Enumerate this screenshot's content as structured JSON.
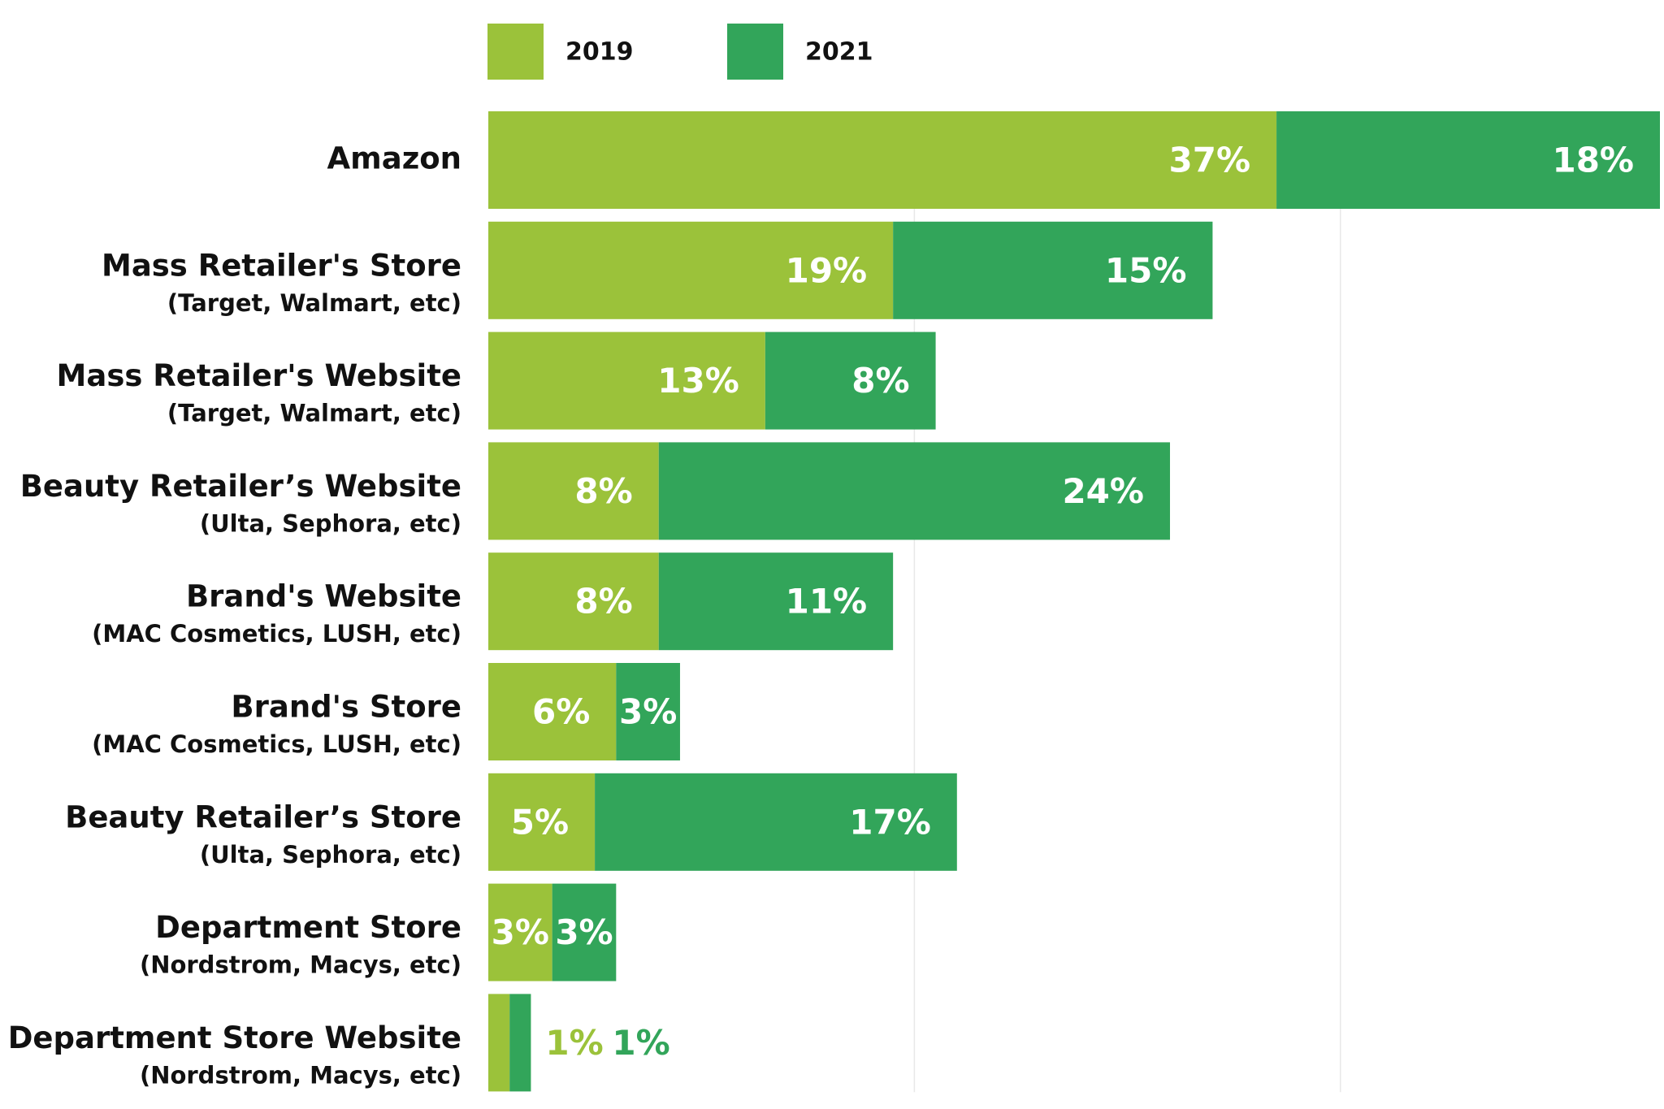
{
  "chart_data": {
    "type": "stacked-horizontal-bar",
    "categories": [
      "Amazon",
      "Mass Retailer's Store",
      "Mass Retailer's Website",
      "Beauty Retailer’s Website",
      "Brand's Website",
      "Brand's Store",
      "Beauty Retailer’s Store",
      "Department Store",
      "Department Store Website"
    ],
    "category_subtitles": [
      null,
      "(Target, Walmart, etc)",
      "(Target, Walmart, etc)",
      "(Ulta, Sephora, etc)",
      "(MAC Cosmetics, LUSH, etc)",
      "(MAC Cosmetics, LUSH, etc)",
      "(Ulta, Sephora, etc)",
      "(Nordstrom, Macys, etc)",
      "(Nordstrom, Macys, etc)"
    ],
    "series": [
      {
        "name": "2019",
        "color": "#9bc23a",
        "values": [
          37,
          19,
          13,
          8,
          8,
          6,
          5,
          3,
          1
        ],
        "value_labels": [
          "37%",
          "19%",
          "13%",
          "8%",
          "8%",
          "6%",
          "5%",
          "3%",
          "1%"
        ]
      },
      {
        "name": "2021",
        "color": "#32a55a",
        "values": [
          18,
          15,
          8,
          24,
          11,
          3,
          17,
          3,
          1
        ],
        "value_labels": [
          "18%",
          "15%",
          "8%",
          "24%",
          "11%",
          "3%",
          "17%",
          "3%",
          "1%"
        ]
      }
    ],
    "xlim": [
      0,
      55
    ],
    "gridlines": [
      20,
      40
    ],
    "legend": "top"
  }
}
